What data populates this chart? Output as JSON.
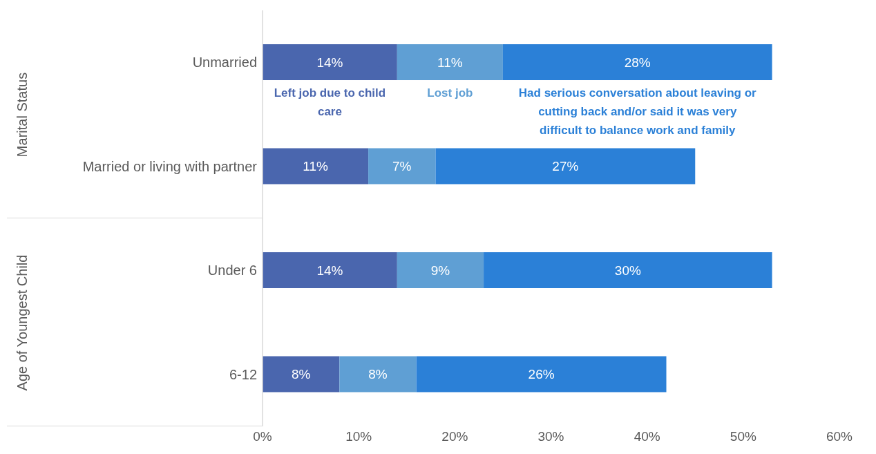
{
  "chart_data": {
    "type": "bar",
    "orientation": "horizontal",
    "stacked": true,
    "categories": [
      "Unmarried",
      "Married or living with partner",
      "Under 6",
      "6-12"
    ],
    "series": [
      {
        "name": "Left job due to child care",
        "color": "#4a66ae",
        "values": [
          14,
          11,
          14,
          8
        ],
        "value_labels": [
          "14%",
          "11%",
          "14%",
          "8%"
        ]
      },
      {
        "name": "Lost job",
        "color": "#5f9fd4",
        "values": [
          11,
          7,
          9,
          8
        ],
        "value_labels": [
          "11%",
          "7%",
          "9%",
          "8%"
        ]
      },
      {
        "name": "Had serious conversation about leaving or cutting back and/or said it was very difficult to balance work and family",
        "color": "#2b80d7",
        "values": [
          28,
          27,
          30,
          26
        ],
        "value_labels": [
          "28%",
          "27%",
          "30%",
          "26%"
        ]
      }
    ],
    "xlim": [
      0,
      60
    ],
    "xticks": [
      {
        "value": 0,
        "label": "0%"
      },
      {
        "value": 10,
        "label": "10%"
      },
      {
        "value": 20,
        "label": "20%"
      },
      {
        "value": 30,
        "label": "30%"
      },
      {
        "value": 40,
        "label": "40%"
      },
      {
        "value": 50,
        "label": "50%"
      },
      {
        "value": 60,
        "label": "60%"
      }
    ],
    "annotations": [
      "Marital Status",
      "Age of Youngest Child"
    ],
    "grid": false,
    "legend": false
  }
}
